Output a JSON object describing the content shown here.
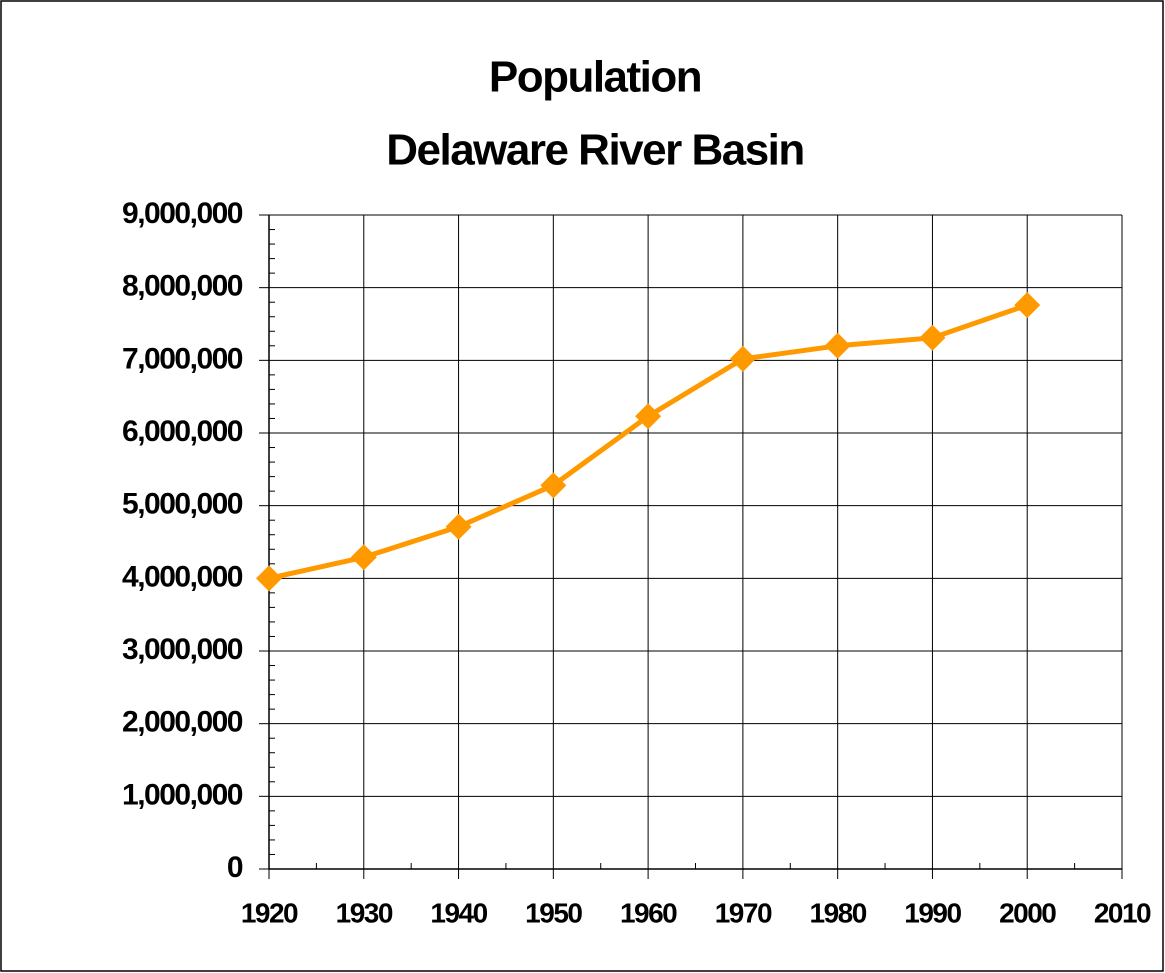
{
  "chart_data": {
    "type": "line",
    "title": "Population",
    "subtitle": "Delaware River Basin",
    "x": [
      1920,
      1930,
      1940,
      1950,
      1960,
      1970,
      1980,
      1990,
      2000
    ],
    "series": [
      {
        "name": "Population",
        "color": "#ff9900",
        "values": [
          4000000,
          4290000,
          4710000,
          5280000,
          6230000,
          7020000,
          7200000,
          7310000,
          7760000
        ]
      }
    ],
    "xlim": [
      1920,
      2010
    ],
    "xticks": [
      1920,
      1930,
      1940,
      1950,
      1960,
      1970,
      1980,
      1990,
      2000,
      2010
    ],
    "ylim": [
      0,
      9000000
    ],
    "yticks": [
      0,
      {
        "value": 1000000,
        "label": "1,000,000"
      },
      {
        "value": 2000000,
        "label": "2,000,000"
      },
      {
        "value": 3000000,
        "label": "3,000,000"
      },
      {
        "value": 4000000,
        "label": "4,000,000"
      },
      {
        "value": 5000000,
        "label": "5,000,000"
      },
      {
        "value": 6000000,
        "label": "6,000,000"
      },
      {
        "value": 7000000,
        "label": "7,000,000"
      },
      {
        "value": 8000000,
        "label": "8,000,000"
      },
      {
        "value": 9000000,
        "label": "9,000,000"
      }
    ],
    "grid": true
  }
}
